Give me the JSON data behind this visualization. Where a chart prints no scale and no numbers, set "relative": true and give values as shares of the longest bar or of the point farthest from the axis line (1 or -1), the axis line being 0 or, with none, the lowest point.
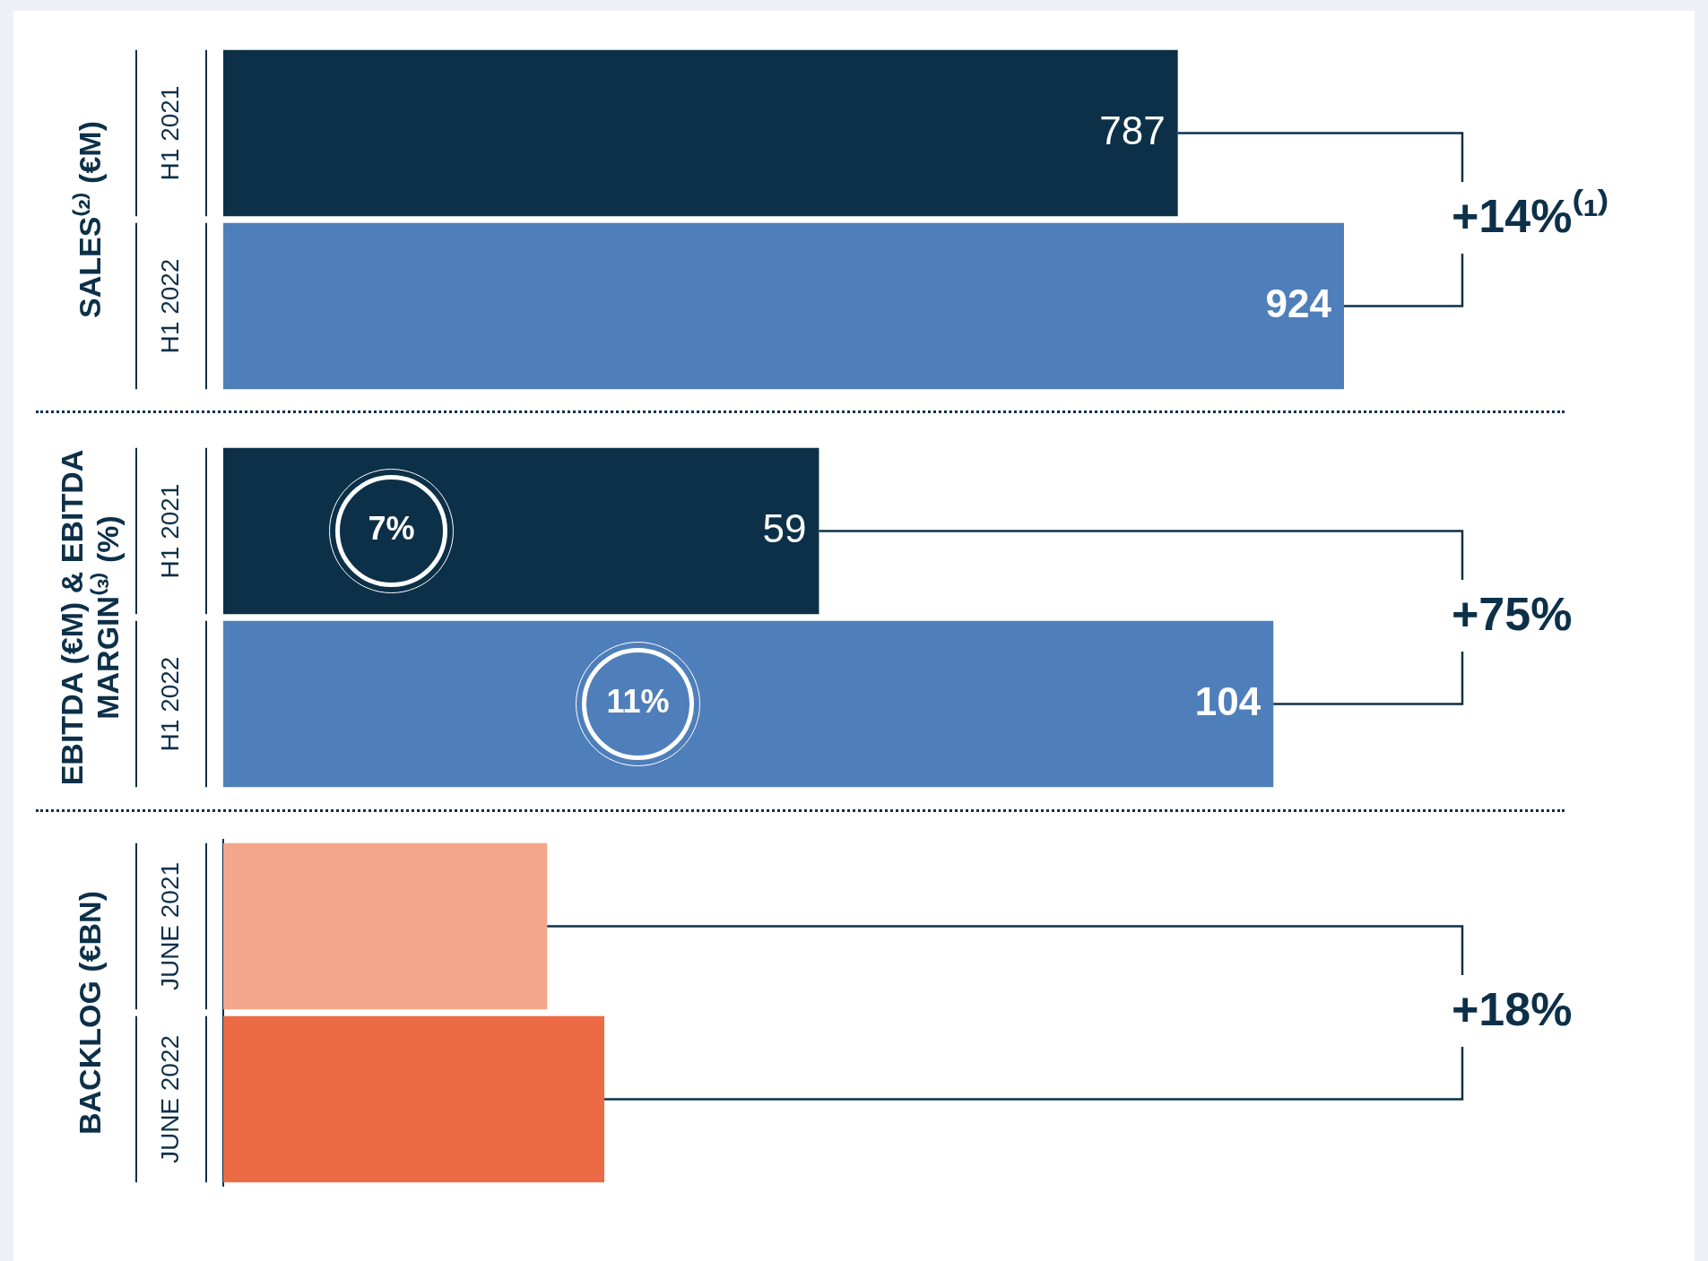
{
  "chart_data": [
    {
      "type": "bar",
      "orientation": "horizontal",
      "ylabel": "SALES⁽²⁾ (€M)",
      "categories": [
        "H1 2021",
        "H1 2022"
      ],
      "values": [
        787,
        924
      ],
      "colors": [
        "#0d3049",
        "#4f7fba"
      ],
      "data_labels": true,
      "annotations": [
        "+14%⁽¹⁾"
      ]
    },
    {
      "type": "bar",
      "orientation": "horizontal",
      "ylabel": "EBITDA (€M) & EBITDA MARGIN⁽³⁾ (%)",
      "categories": [
        "H1 2021",
        "H1 2022"
      ],
      "values": [
        59,
        104
      ],
      "colors": [
        "#0d3049",
        "#4f7fba"
      ],
      "data_labels": true,
      "annotations": [
        "+75%",
        "7%",
        "11%"
      ]
    },
    {
      "type": "bar",
      "orientation": "horizontal",
      "relative": true,
      "ylabel": "BACKLOG (€BN)",
      "categories": [
        "JUNE 2021",
        "JUNE 2022"
      ],
      "values": [
        0.85,
        1
      ],
      "colors": [
        "#f4a68c",
        "#ec6b44"
      ],
      "annotations": [
        "+18%"
      ]
    }
  ]
}
